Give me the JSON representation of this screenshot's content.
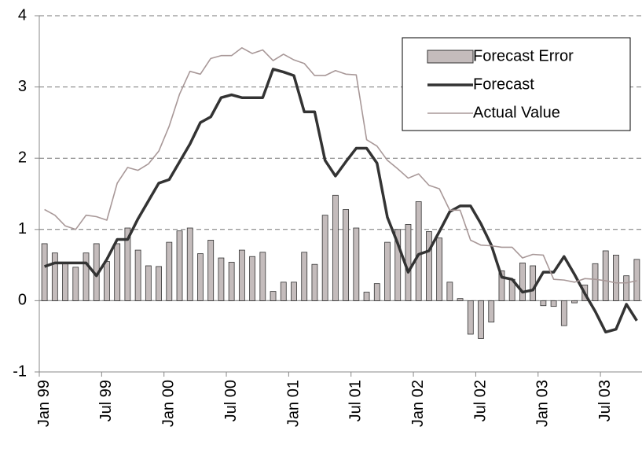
{
  "chart_data": {
    "type": "bar-line",
    "categories": [
      "Jan 99",
      null,
      null,
      null,
      null,
      null,
      "Jul 99",
      null,
      null,
      null,
      null,
      null,
      "Jan 00",
      null,
      null,
      null,
      null,
      null,
      "Jul 00",
      null,
      null,
      null,
      null,
      null,
      "Jan 01",
      null,
      null,
      null,
      null,
      null,
      "Jul 01",
      null,
      null,
      null,
      null,
      null,
      "Jan 02",
      null,
      null,
      null,
      null,
      null,
      "Jul 02",
      null,
      null,
      null,
      null,
      null,
      "Jan 03",
      null,
      null,
      null,
      null,
      null,
      "Jul 03",
      null,
      null,
      null
    ],
    "series": [
      {
        "name": "Forecast Error",
        "kind": "bar",
        "color": "#c4bcbc",
        "values": [
          0.8,
          0.67,
          0.52,
          0.47,
          0.67,
          0.8,
          0.55,
          0.8,
          1.02,
          0.71,
          0.49,
          0.48,
          0.82,
          0.98,
          1.02,
          0.66,
          0.85,
          0.6,
          0.54,
          0.71,
          0.62,
          0.68,
          0.13,
          0.26,
          0.26,
          0.68,
          0.51,
          1.2,
          1.48,
          1.28,
          1.02,
          0.12,
          0.24,
          0.82,
          1.0,
          1.07,
          1.39,
          0.97,
          0.88,
          0.26,
          0.03,
          -0.47,
          -0.53,
          -0.3,
          0.42,
          0.3,
          0.53,
          0.49,
          -0.07,
          -0.08,
          -0.35,
          -0.03,
          0.22,
          0.52,
          0.7,
          0.64,
          0.35,
          0.58
        ]
      },
      {
        "name": "Forecast",
        "kind": "line",
        "color": "#333333",
        "values": [
          0.48,
          0.53,
          0.53,
          0.53,
          0.53,
          0.35,
          0.58,
          0.86,
          0.86,
          1.15,
          1.4,
          1.65,
          1.7,
          1.95,
          2.2,
          2.5,
          2.58,
          2.85,
          2.89,
          2.85,
          2.85,
          2.85,
          3.25,
          3.21,
          3.16,
          2.65,
          2.65,
          1.97,
          1.75,
          1.95,
          2.14,
          2.14,
          1.93,
          1.17,
          0.8,
          0.4,
          0.65,
          0.7,
          0.97,
          1.25,
          1.33,
          1.33,
          1.08,
          0.78,
          0.33,
          0.3,
          0.12,
          0.15,
          0.4,
          0.4,
          0.62,
          0.37,
          0.1,
          -0.15,
          -0.44,
          -0.4,
          -0.05,
          -0.28
        ]
      },
      {
        "name": "Actual Value",
        "kind": "line",
        "color": "#a89898",
        "values": [
          1.28,
          1.2,
          1.05,
          1.0,
          1.2,
          1.18,
          1.13,
          1.65,
          1.87,
          1.83,
          1.92,
          2.1,
          2.45,
          2.9,
          3.22,
          3.18,
          3.4,
          3.44,
          3.44,
          3.55,
          3.47,
          3.52,
          3.37,
          3.46,
          3.38,
          3.33,
          3.16,
          3.16,
          3.23,
          3.18,
          3.17,
          2.26,
          2.17,
          1.97,
          1.85,
          1.72,
          1.78,
          1.62,
          1.57,
          1.27,
          1.27,
          0.85,
          0.78,
          0.77,
          0.75,
          0.75,
          0.6,
          0.65,
          0.64,
          0.3,
          0.29,
          0.26,
          0.31,
          0.3,
          0.28,
          0.25,
          0.25,
          0.28
        ]
      }
    ],
    "ylim": [
      -1,
      4
    ],
    "yticks": [
      -1,
      0,
      1,
      2,
      3,
      4
    ],
    "grid": true,
    "legend": "top-right"
  }
}
